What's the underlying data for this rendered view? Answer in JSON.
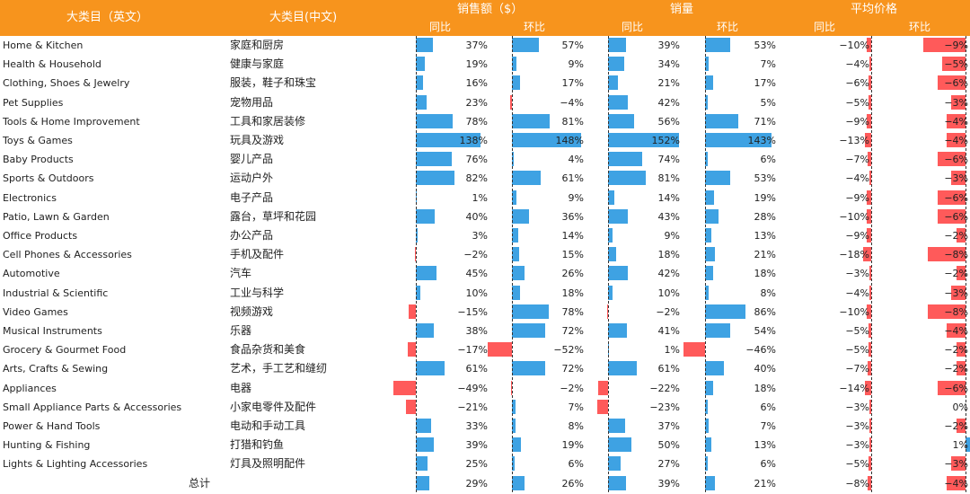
{
  "header": {
    "col_en": "大类目（英文）",
    "col_zh": "大类目(中文)",
    "groups": [
      "销售额（$）",
      "销量",
      "平均价格"
    ],
    "sub_yoy": "同比",
    "sub_mom": "环比"
  },
  "colors": {
    "header": "#f7941d",
    "positive": "#3ea2e3",
    "negative": "#ff5a5a"
  },
  "chart_data": {
    "type": "table",
    "columns": [
      "sales_yoy",
      "sales_mom",
      "volume_yoy",
      "volume_mom",
      "price_yoy",
      "price_mom"
    ],
    "rows": [
      {
        "en": "Home & Kitchen",
        "zh": "家庭和厨房",
        "values": [
          37,
          57,
          39,
          53,
          -10,
          -9
        ]
      },
      {
        "en": "Health & Household",
        "zh": "健康与家庭",
        "values": [
          19,
          9,
          34,
          7,
          -4,
          -5
        ]
      },
      {
        "en": "Clothing, Shoes & Jewelry",
        "zh": "服装，鞋子和珠宝",
        "values": [
          16,
          17,
          21,
          17,
          -6,
          -6
        ]
      },
      {
        "en": "Pet Supplies",
        "zh": "宠物用品",
        "values": [
          23,
          -4,
          42,
          5,
          -5,
          -3
        ]
      },
      {
        "en": "Tools & Home Improvement",
        "zh": "工具和家居装修",
        "values": [
          78,
          81,
          56,
          71,
          -9,
          -4
        ]
      },
      {
        "en": "Toys & Games",
        "zh": "玩具及游戏",
        "values": [
          138,
          148,
          152,
          143,
          -13,
          -4
        ]
      },
      {
        "en": "Baby Products",
        "zh": "婴儿产品",
        "values": [
          76,
          4,
          74,
          6,
          -7,
          -6
        ]
      },
      {
        "en": "Sports & Outdoors",
        "zh": "运动户外",
        "values": [
          82,
          61,
          81,
          53,
          -4,
          -3
        ]
      },
      {
        "en": "Electronics",
        "zh": "电子产品",
        "values": [
          1,
          9,
          14,
          19,
          -9,
          -6
        ]
      },
      {
        "en": "Patio, Lawn & Garden",
        "zh": "露台，草坪和花园",
        "values": [
          40,
          36,
          43,
          28,
          -10,
          -6
        ]
      },
      {
        "en": "Office Products",
        "zh": "办公产品",
        "values": [
          3,
          14,
          9,
          13,
          -9,
          -2
        ]
      },
      {
        "en": "Cell Phones & Accessories",
        "zh": "手机及配件",
        "values": [
          -2,
          15,
          18,
          21,
          -18,
          -8
        ]
      },
      {
        "en": "Automotive",
        "zh": "汽车",
        "values": [
          45,
          26,
          42,
          18,
          -3,
          -2
        ]
      },
      {
        "en": "Industrial & Scientific",
        "zh": "工业与科学",
        "values": [
          10,
          18,
          10,
          8,
          -4,
          -3
        ]
      },
      {
        "en": "Video Games",
        "zh": "视频游戏",
        "values": [
          -15,
          78,
          -2,
          86,
          -10,
          -8
        ]
      },
      {
        "en": "Musical Instruments",
        "zh": "乐器",
        "values": [
          38,
          72,
          41,
          54,
          -5,
          -4
        ]
      },
      {
        "en": "Grocery & Gourmet Food",
        "zh": "食品杂货和美食",
        "values": [
          -17,
          -52,
          1,
          -46,
          -5,
          -2
        ]
      },
      {
        "en": "Arts, Crafts & Sewing",
        "zh": "艺术，手工艺和缝纫",
        "values": [
          61,
          72,
          61,
          40,
          -7,
          -2
        ]
      },
      {
        "en": "Appliances",
        "zh": "电器",
        "values": [
          -49,
          -2,
          -22,
          18,
          -14,
          -6
        ]
      },
      {
        "en": "Small Appliance Parts & Accessories",
        "zh": "小家电零件及配件",
        "values": [
          -21,
          7,
          -23,
          6,
          -3,
          0
        ]
      },
      {
        "en": "Power & Hand Tools",
        "zh": "电动和手动工具",
        "values": [
          33,
          8,
          37,
          7,
          -3,
          -2
        ]
      },
      {
        "en": "Hunting & Fishing",
        "zh": "打猎和钓鱼",
        "values": [
          39,
          19,
          50,
          13,
          -3,
          1
        ]
      },
      {
        "en": "Lights & Lighting Accessories",
        "zh": "灯具及照明配件",
        "values": [
          25,
          6,
          27,
          6,
          -5,
          -3
        ]
      }
    ],
    "total": {
      "zh": "总计",
      "values": [
        29,
        26,
        39,
        21,
        -8,
        -4
      ]
    }
  }
}
